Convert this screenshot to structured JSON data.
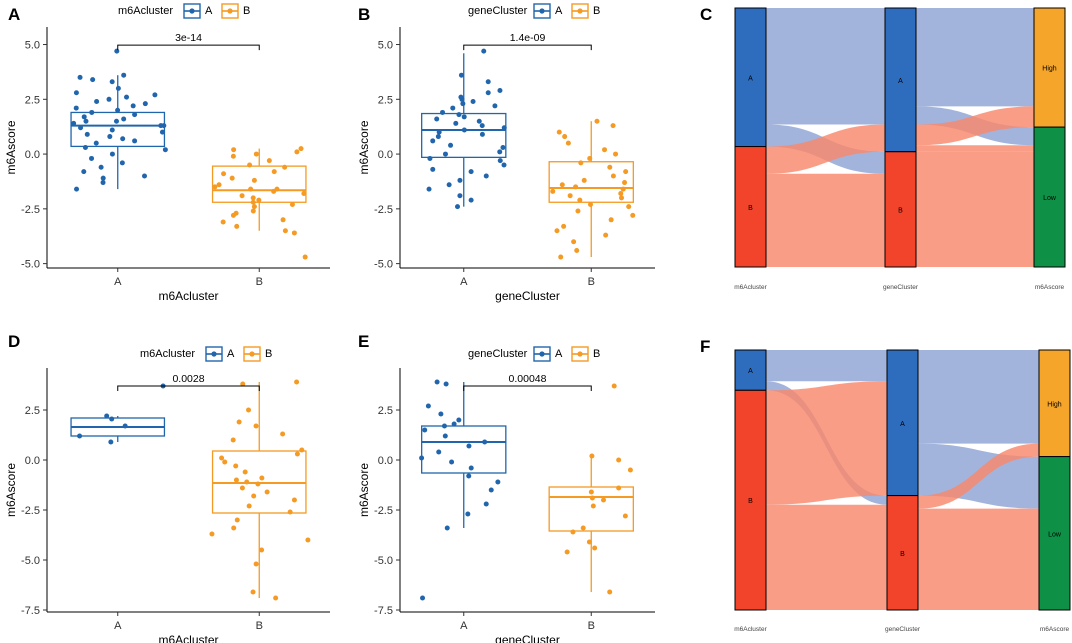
{
  "colors": {
    "A": "#2166AC",
    "B": "#F59A23",
    "sankey_A": "#2E6DBE",
    "sankey_B": "#F2432B",
    "sankey_High": "#F5A52A",
    "sankey_Low": "#0E9147",
    "flow_blue": "#8FA4D4",
    "flow_red": "#F9876B"
  },
  "panels": [
    {
      "letter": "A",
      "legend_title": "m6Acluster",
      "legend_items": [
        "A",
        "B"
      ],
      "xlabel": "m6Acluster",
      "ylabel": "m6Ascore",
      "pvalue": "3e-14",
      "chart_data": {
        "type": "boxplot",
        "categories": [
          "A",
          "B"
        ],
        "ylim": [
          -5.2,
          5.8
        ],
        "yticks": [
          "5.0",
          "2.5",
          "0.0",
          "-2.5",
          "-5.0"
        ],
        "ytick_values": [
          5.0,
          2.5,
          0.0,
          -2.5,
          -5.0
        ],
        "boxes": [
          {
            "q1": 0.35,
            "median": 1.3,
            "q3": 1.9,
            "whisker_low": -1.6,
            "whisker_high": 3.6
          },
          {
            "q1": -2.2,
            "median": -1.65,
            "q3": -0.55,
            "whisker_low": -3.5,
            "whisker_high": 0.25
          }
        ],
        "points": [
          [
            4.7,
            3.6,
            3.5,
            3.4,
            3.3,
            3.0,
            2.8,
            2.7,
            2.6,
            2.5,
            2.4,
            2.3,
            2.2,
            2.1,
            2.0,
            1.9,
            1.8,
            1.7,
            1.6,
            1.5,
            1.5,
            1.4,
            1.3,
            1.3,
            1.2,
            1.1,
            1.0,
            0.9,
            0.8,
            0.7,
            0.6,
            0.5,
            0.3,
            0.2,
            0.0,
            -0.2,
            -0.4,
            -0.6,
            -0.8,
            -1.0,
            -1.1,
            -1.3,
            -1.6
          ],
          [
            0.25,
            0.2,
            0.1,
            0.0,
            -0.1,
            -0.3,
            -0.5,
            -0.6,
            -0.8,
            -0.9,
            -1.1,
            -1.2,
            -1.4,
            -1.5,
            -1.6,
            -1.6,
            -1.7,
            -1.8,
            -1.9,
            -2.0,
            -2.1,
            -2.2,
            -2.3,
            -2.4,
            -2.6,
            -2.7,
            -2.8,
            -3.0,
            -3.1,
            -3.3,
            -3.5,
            -3.6,
            -4.7
          ]
        ]
      }
    },
    {
      "letter": "B",
      "legend_title": "geneCluster",
      "legend_items": [
        "A",
        "B"
      ],
      "xlabel": "geneCluster",
      "ylabel": "m6Ascore",
      "pvalue": "1.4e-09",
      "chart_data": {
        "type": "boxplot",
        "categories": [
          "A",
          "B"
        ],
        "ylim": [
          -5.2,
          5.8
        ],
        "yticks": [
          "5.0",
          "2.5",
          "0.0",
          "-2.5",
          "-5.0"
        ],
        "ytick_values": [
          5.0,
          2.5,
          0.0,
          -2.5,
          -5.0
        ],
        "boxes": [
          {
            "q1": -0.15,
            "median": 1.1,
            "q3": 1.85,
            "whisker_low": -2.4,
            "whisker_high": 4.6
          },
          {
            "q1": -2.2,
            "median": -1.55,
            "q3": -0.35,
            "whisker_low": -4.7,
            "whisker_high": 1.5
          }
        ],
        "points": [
          [
            4.7,
            3.6,
            3.3,
            2.9,
            2.8,
            2.6,
            2.5,
            2.4,
            2.3,
            2.2,
            2.1,
            1.9,
            1.8,
            1.7,
            1.6,
            1.5,
            1.4,
            1.3,
            1.2,
            1.1,
            1.0,
            0.9,
            0.8,
            0.6,
            0.4,
            0.3,
            0.1,
            0.0,
            -0.2,
            -0.3,
            -0.5,
            -0.7,
            -0.8,
            -1.0,
            -1.2,
            -1.4,
            -1.6,
            -1.9,
            -2.1,
            -2.4
          ],
          [
            1.5,
            1.3,
            1.0,
            0.8,
            0.5,
            0.2,
            0.0,
            -0.2,
            -0.4,
            -0.6,
            -0.8,
            -1.0,
            -1.2,
            -1.3,
            -1.4,
            -1.5,
            -1.6,
            -1.7,
            -1.8,
            -1.9,
            -2.0,
            -2.1,
            -2.3,
            -2.4,
            -2.6,
            -2.8,
            -3.0,
            -3.3,
            -3.5,
            -3.7,
            -4.0,
            -4.4,
            -4.7
          ]
        ]
      }
    },
    {
      "letter": "D",
      "legend_title": "m6Acluster",
      "legend_items": [
        "A",
        "B"
      ],
      "xlabel": "m6Acluster",
      "ylabel": "m6Ascore",
      "pvalue": "0.0028",
      "chart_data": {
        "type": "boxplot",
        "categories": [
          "A",
          "B"
        ],
        "ylim": [
          -7.6,
          4.6
        ],
        "yticks": [
          "2.5",
          "0.0",
          "-2.5",
          "-5.0",
          "-7.5"
        ],
        "ytick_values": [
          2.5,
          0.0,
          -2.5,
          -5.0,
          -7.5
        ],
        "boxes": [
          {
            "q1": 1.2,
            "median": 1.65,
            "q3": 2.1,
            "whisker_low": 0.9,
            "whisker_high": 2.2
          },
          {
            "q1": -2.65,
            "median": -1.15,
            "q3": 0.45,
            "whisker_low": -6.9,
            "whisker_high": 3.9
          }
        ],
        "points": [
          [
            3.7,
            2.2,
            2.05,
            1.7,
            1.2,
            0.9
          ],
          [
            3.9,
            3.8,
            2.5,
            1.9,
            1.7,
            1.3,
            1.0,
            0.5,
            0.3,
            0.1,
            -0.1,
            -0.3,
            -0.6,
            -0.9,
            -1.0,
            -1.1,
            -1.2,
            -1.4,
            -1.6,
            -1.8,
            -2.0,
            -2.3,
            -2.6,
            -3.0,
            -3.4,
            -3.7,
            -4.0,
            -4.5,
            -5.2,
            -6.6,
            -6.9
          ]
        ]
      }
    },
    {
      "letter": "E",
      "legend_title": "geneCluster",
      "legend_items": [
        "A",
        "B"
      ],
      "xlabel": "geneCluster",
      "ylabel": "m6Ascore",
      "pvalue": "0.00048",
      "chart_data": {
        "type": "boxplot",
        "categories": [
          "A",
          "B"
        ],
        "ylim": [
          -7.6,
          4.6
        ],
        "yticks": [
          "2.5",
          "0.0",
          "-2.5",
          "-5.0",
          "-7.5"
        ],
        "ytick_values": [
          2.5,
          0.0,
          -2.5,
          -5.0,
          -7.5
        ],
        "boxes": [
          {
            "q1": -0.65,
            "median": 0.9,
            "q3": 1.7,
            "whisker_low": -3.4,
            "whisker_high": 3.9
          },
          {
            "q1": -3.55,
            "median": -1.85,
            "q3": -1.35,
            "whisker_low": -6.6,
            "whisker_high": 0.2
          }
        ],
        "points": [
          [
            3.9,
            3.8,
            2.7,
            2.3,
            2.0,
            1.8,
            1.7,
            1.5,
            1.2,
            0.9,
            0.7,
            0.4,
            0.1,
            -0.1,
            -0.4,
            -0.8,
            -1.1,
            -1.5,
            -2.2,
            -2.7,
            -3.4,
            -6.9
          ],
          [
            3.7,
            0.2,
            0.0,
            -0.5,
            -1.4,
            -1.6,
            -1.9,
            -2.0,
            -2.3,
            -2.8,
            -3.4,
            -3.6,
            -4.1,
            -4.4,
            -4.6,
            -6.6
          ]
        ]
      }
    }
  ],
  "sankeys": [
    {
      "letter": "C",
      "axis_labels": [
        "m6Acluster",
        "geneCluster",
        "m6Ascore"
      ],
      "chart_data": {
        "type": "sankey",
        "columns": [
          {
            "name": "m6Acluster",
            "nodes": [
              {
                "label": "A",
                "value": 53.5,
                "color_key": "sankey_A"
              },
              {
                "label": "B",
                "value": 46.5,
                "color_key": "sankey_B"
              }
            ]
          },
          {
            "name": "geneCluster",
            "nodes": [
              {
                "label": "A",
                "value": 55.5,
                "color_key": "sankey_A"
              },
              {
                "label": "B",
                "value": 44.5,
                "color_key": "sankey_B"
              }
            ]
          },
          {
            "name": "m6Ascore",
            "nodes": [
              {
                "label": "High",
                "value": 46,
                "color_key": "sankey_High"
              },
              {
                "label": "Low",
                "value": 54,
                "color_key": "sankey_Low"
              }
            ]
          }
        ],
        "links": [
          {
            "from": [
              0,
              "A"
            ],
            "to": [
              1,
              "A"
            ],
            "value": 45,
            "color_key": "flow_blue"
          },
          {
            "from": [
              0,
              "A"
            ],
            "to": [
              1,
              "B"
            ],
            "value": 8.5,
            "color_key": "flow_blue"
          },
          {
            "from": [
              0,
              "B"
            ],
            "to": [
              1,
              "A"
            ],
            "value": 10.5,
            "color_key": "flow_red"
          },
          {
            "from": [
              0,
              "B"
            ],
            "to": [
              1,
              "B"
            ],
            "value": 36,
            "color_key": "flow_red"
          },
          {
            "from": [
              1,
              "A"
            ],
            "to": [
              2,
              "High"
            ],
            "value": 38,
            "color_key": "flow_blue"
          },
          {
            "from": [
              1,
              "A"
            ],
            "to": [
              2,
              "Low"
            ],
            "value": 7,
            "color_key": "flow_blue"
          },
          {
            "from": [
              1,
              "A"
            ],
            "to": [
              2,
              "High"
            ],
            "value": 8,
            "color_key": "flow_red"
          },
          {
            "from": [
              1,
              "A"
            ],
            "to": [
              2,
              "Low"
            ],
            "value": 2.5,
            "color_key": "flow_red"
          },
          {
            "from": [
              1,
              "B"
            ],
            "to": [
              2,
              "Low"
            ],
            "value": 44.5,
            "color_key": "flow_red"
          }
        ]
      }
    },
    {
      "letter": "F",
      "axis_labels": [
        "m6Acluster",
        "geneCluster",
        "m6Ascore"
      ],
      "chart_data": {
        "type": "sankey",
        "columns": [
          {
            "name": "m6Acluster",
            "nodes": [
              {
                "label": "A",
                "value": 15.5,
                "color_key": "sankey_A"
              },
              {
                "label": "B",
                "value": 84.5,
                "color_key": "sankey_B"
              }
            ]
          },
          {
            "name": "geneCluster",
            "nodes": [
              {
                "label": "A",
                "value": 56,
                "color_key": "sankey_A"
              },
              {
                "label": "B",
                "value": 44,
                "color_key": "sankey_B"
              }
            ]
          },
          {
            "name": "m6Ascore",
            "nodes": [
              {
                "label": "High",
                "value": 41,
                "color_key": "sankey_High"
              },
              {
                "label": "Low",
                "value": 59,
                "color_key": "sankey_Low"
              }
            ]
          }
        ],
        "links": [
          {
            "from": [
              0,
              "A"
            ],
            "to": [
              1,
              "A"
            ],
            "value": 12,
            "color_key": "flow_blue"
          },
          {
            "from": [
              0,
              "A"
            ],
            "to": [
              1,
              "B"
            ],
            "value": 3.5,
            "color_key": "flow_blue"
          },
          {
            "from": [
              0,
              "B"
            ],
            "to": [
              1,
              "A"
            ],
            "value": 44,
            "color_key": "flow_red"
          },
          {
            "from": [
              0,
              "B"
            ],
            "to": [
              1,
              "B"
            ],
            "value": 40.5,
            "color_key": "flow_red"
          },
          {
            "from": [
              1,
              "A"
            ],
            "to": [
              2,
              "High"
            ],
            "value": 36,
            "color_key": "flow_blue"
          },
          {
            "from": [
              1,
              "A"
            ],
            "to": [
              2,
              "Low"
            ],
            "value": 20,
            "color_key": "flow_blue"
          },
          {
            "from": [
              1,
              "B"
            ],
            "to": [
              2,
              "High"
            ],
            "value": 5,
            "color_key": "flow_red"
          },
          {
            "from": [
              1,
              "B"
            ],
            "to": [
              2,
              "Low"
            ],
            "value": 39,
            "color_key": "flow_red"
          }
        ]
      }
    }
  ]
}
